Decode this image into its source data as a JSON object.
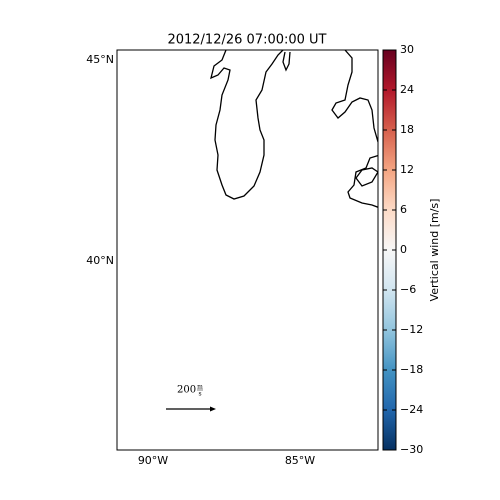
{
  "title": "2012/12/26 07:00:00 UT",
  "lat_labels": [
    "45°N",
    "40°N"
  ],
  "lon_labels": [
    "90°W",
    "85°W"
  ],
  "colorbar": {
    "label": "Vertical wind [m/s]",
    "lim": [
      -30,
      30
    ],
    "ticks": [
      {
        "value": -30,
        "label": "−30"
      },
      {
        "value": -24,
        "label": "−24"
      },
      {
        "value": -18,
        "label": "−18"
      },
      {
        "value": -12,
        "label": "−12"
      },
      {
        "value": -6,
        "label": "−6"
      },
      0,
      6,
      12,
      18,
      24,
      30
    ]
  },
  "quiver_key": {
    "magnitude": "200",
    "unit_top": "m",
    "unit_bottom": "s"
  }
}
